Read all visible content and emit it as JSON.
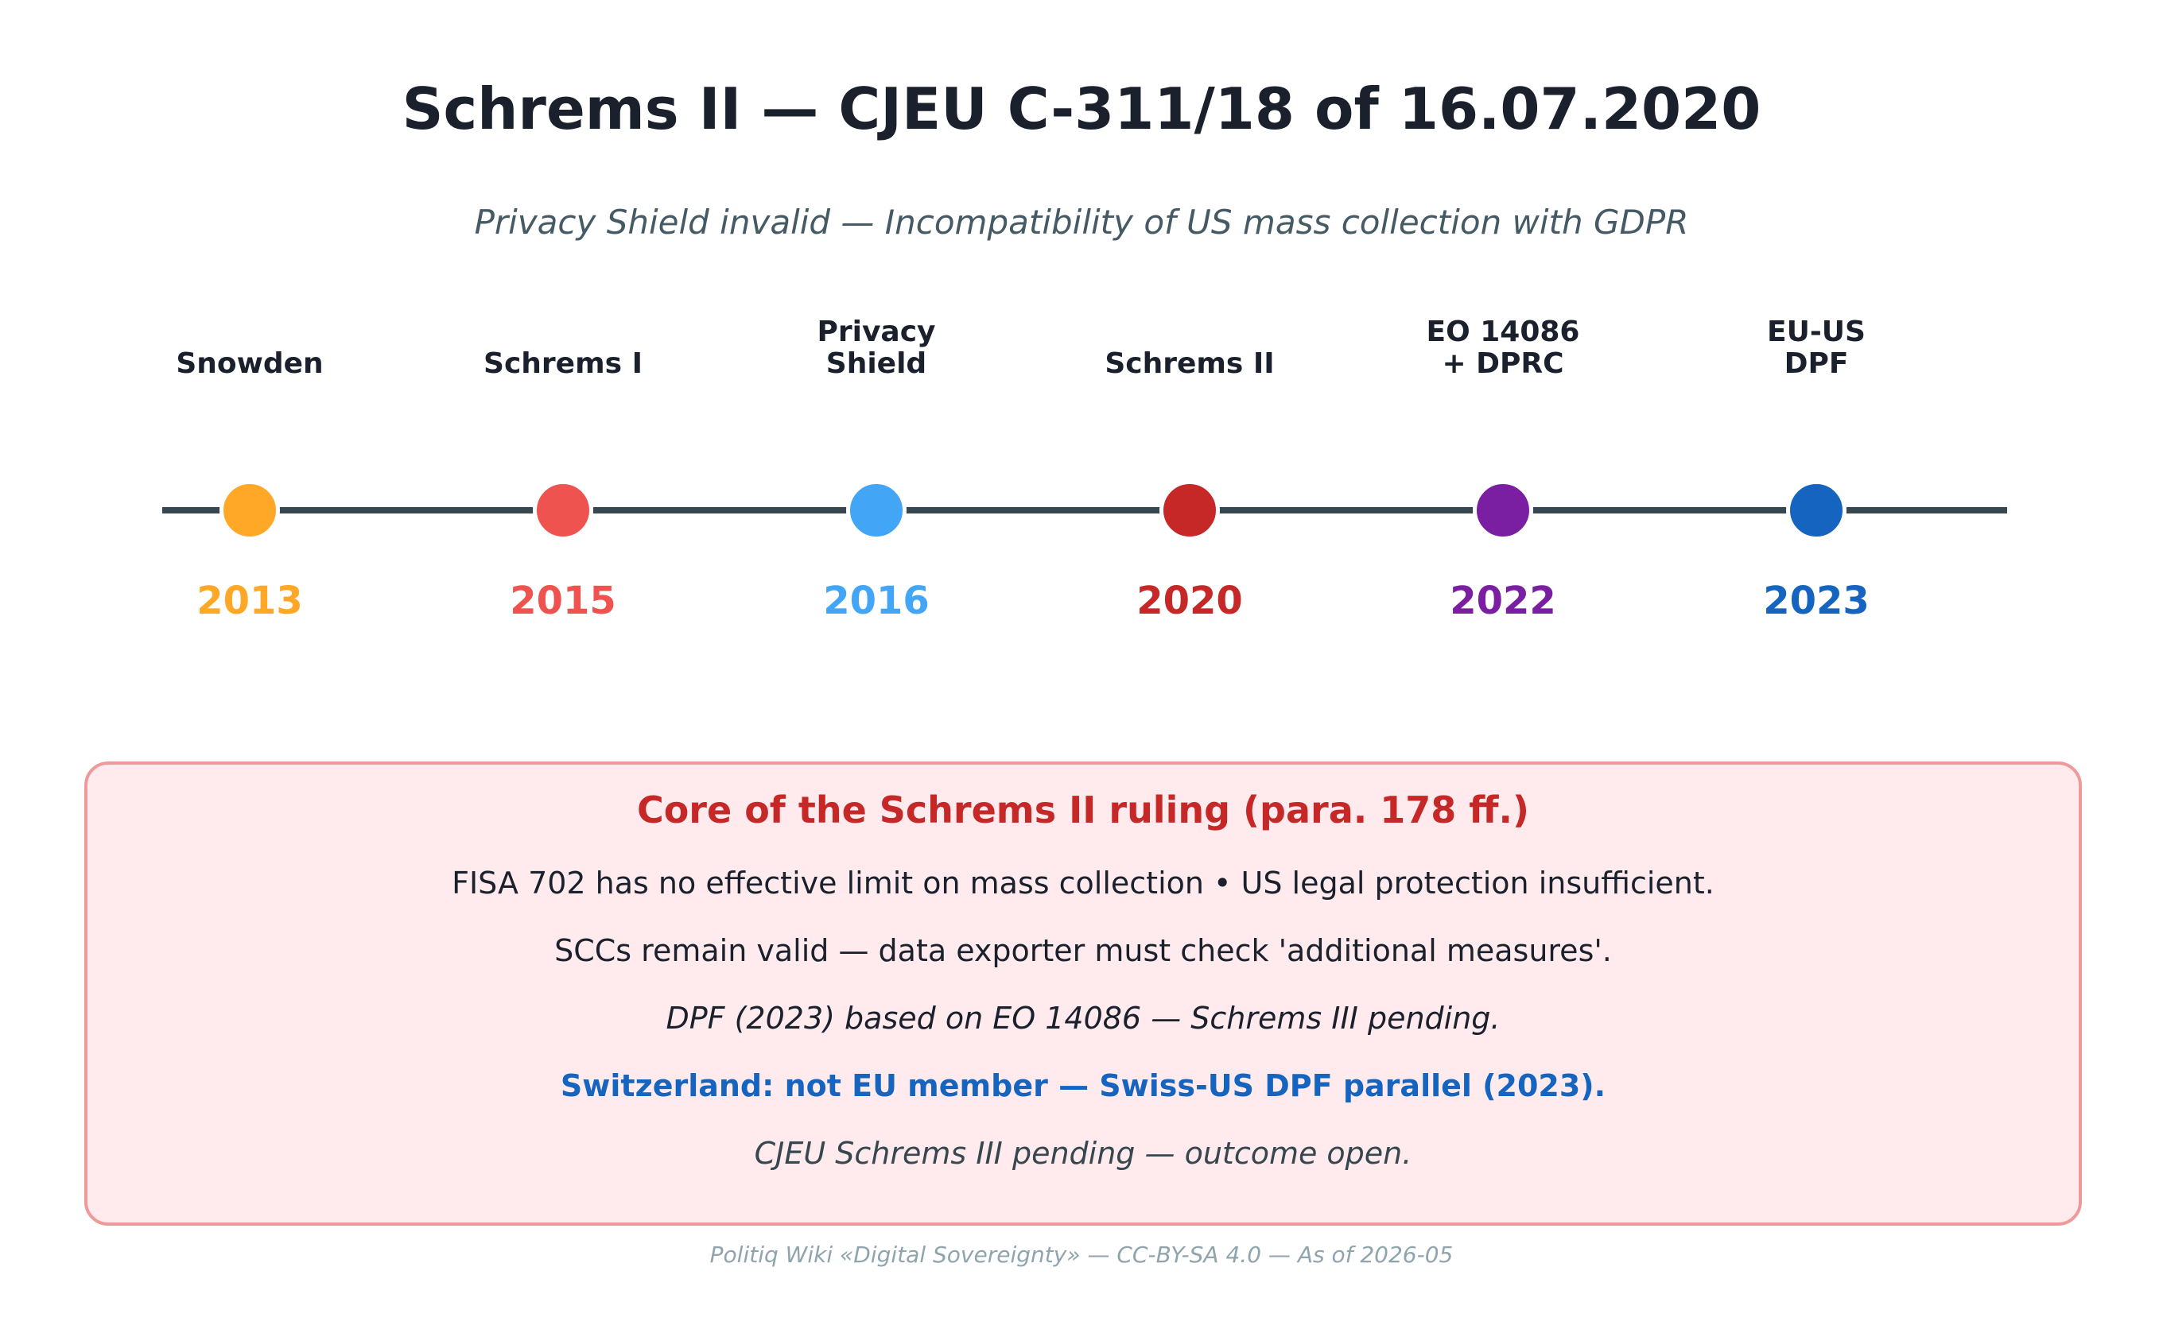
{
  "title": "Schrems II — CJEU C-311/18 of 16.07.2020",
  "subtitle": "Privacy Shield invalid — Incompatibility of US mass collection with GDPR",
  "timeline": {
    "events": [
      {
        "label": "Snowden",
        "year": "2013",
        "color": "#ffa726"
      },
      {
        "label": "Schrems I",
        "year": "2015",
        "color": "#ef5350"
      },
      {
        "label": "Privacy\nShield",
        "year": "2016",
        "color": "#42a5f5"
      },
      {
        "label": "Schrems II",
        "year": "2020",
        "color": "#c62828"
      },
      {
        "label": "EO 14086\n+ DPRC",
        "year": "2022",
        "color": "#7b1fa2"
      },
      {
        "label": "EU-US\nDPF",
        "year": "2023",
        "color": "#1565c0"
      }
    ],
    "line_color": "#37474f"
  },
  "box": {
    "title": "Core of the Schrems II ruling (para. 178 ff.)",
    "lines": [
      "FISA 702 has no effective limit on mass collection • US legal protection insufficient.",
      "SCCs remain valid — data exporter must check 'additional measures'.",
      "DPF (2023) based on EO 14086 — Schrems III pending.",
      "Switzerland: not EU member — Swiss-US DPF parallel (2023).",
      "CJEU Schrems III pending — outcome open."
    ],
    "background": "#ffebee",
    "border": "#ef9a9a",
    "title_color": "#c62828",
    "highlight_color": "#1565c0"
  },
  "footer": "Politiq Wiki «Digital Sovereignty» — CC-BY-SA 4.0 — As of 2026-05"
}
